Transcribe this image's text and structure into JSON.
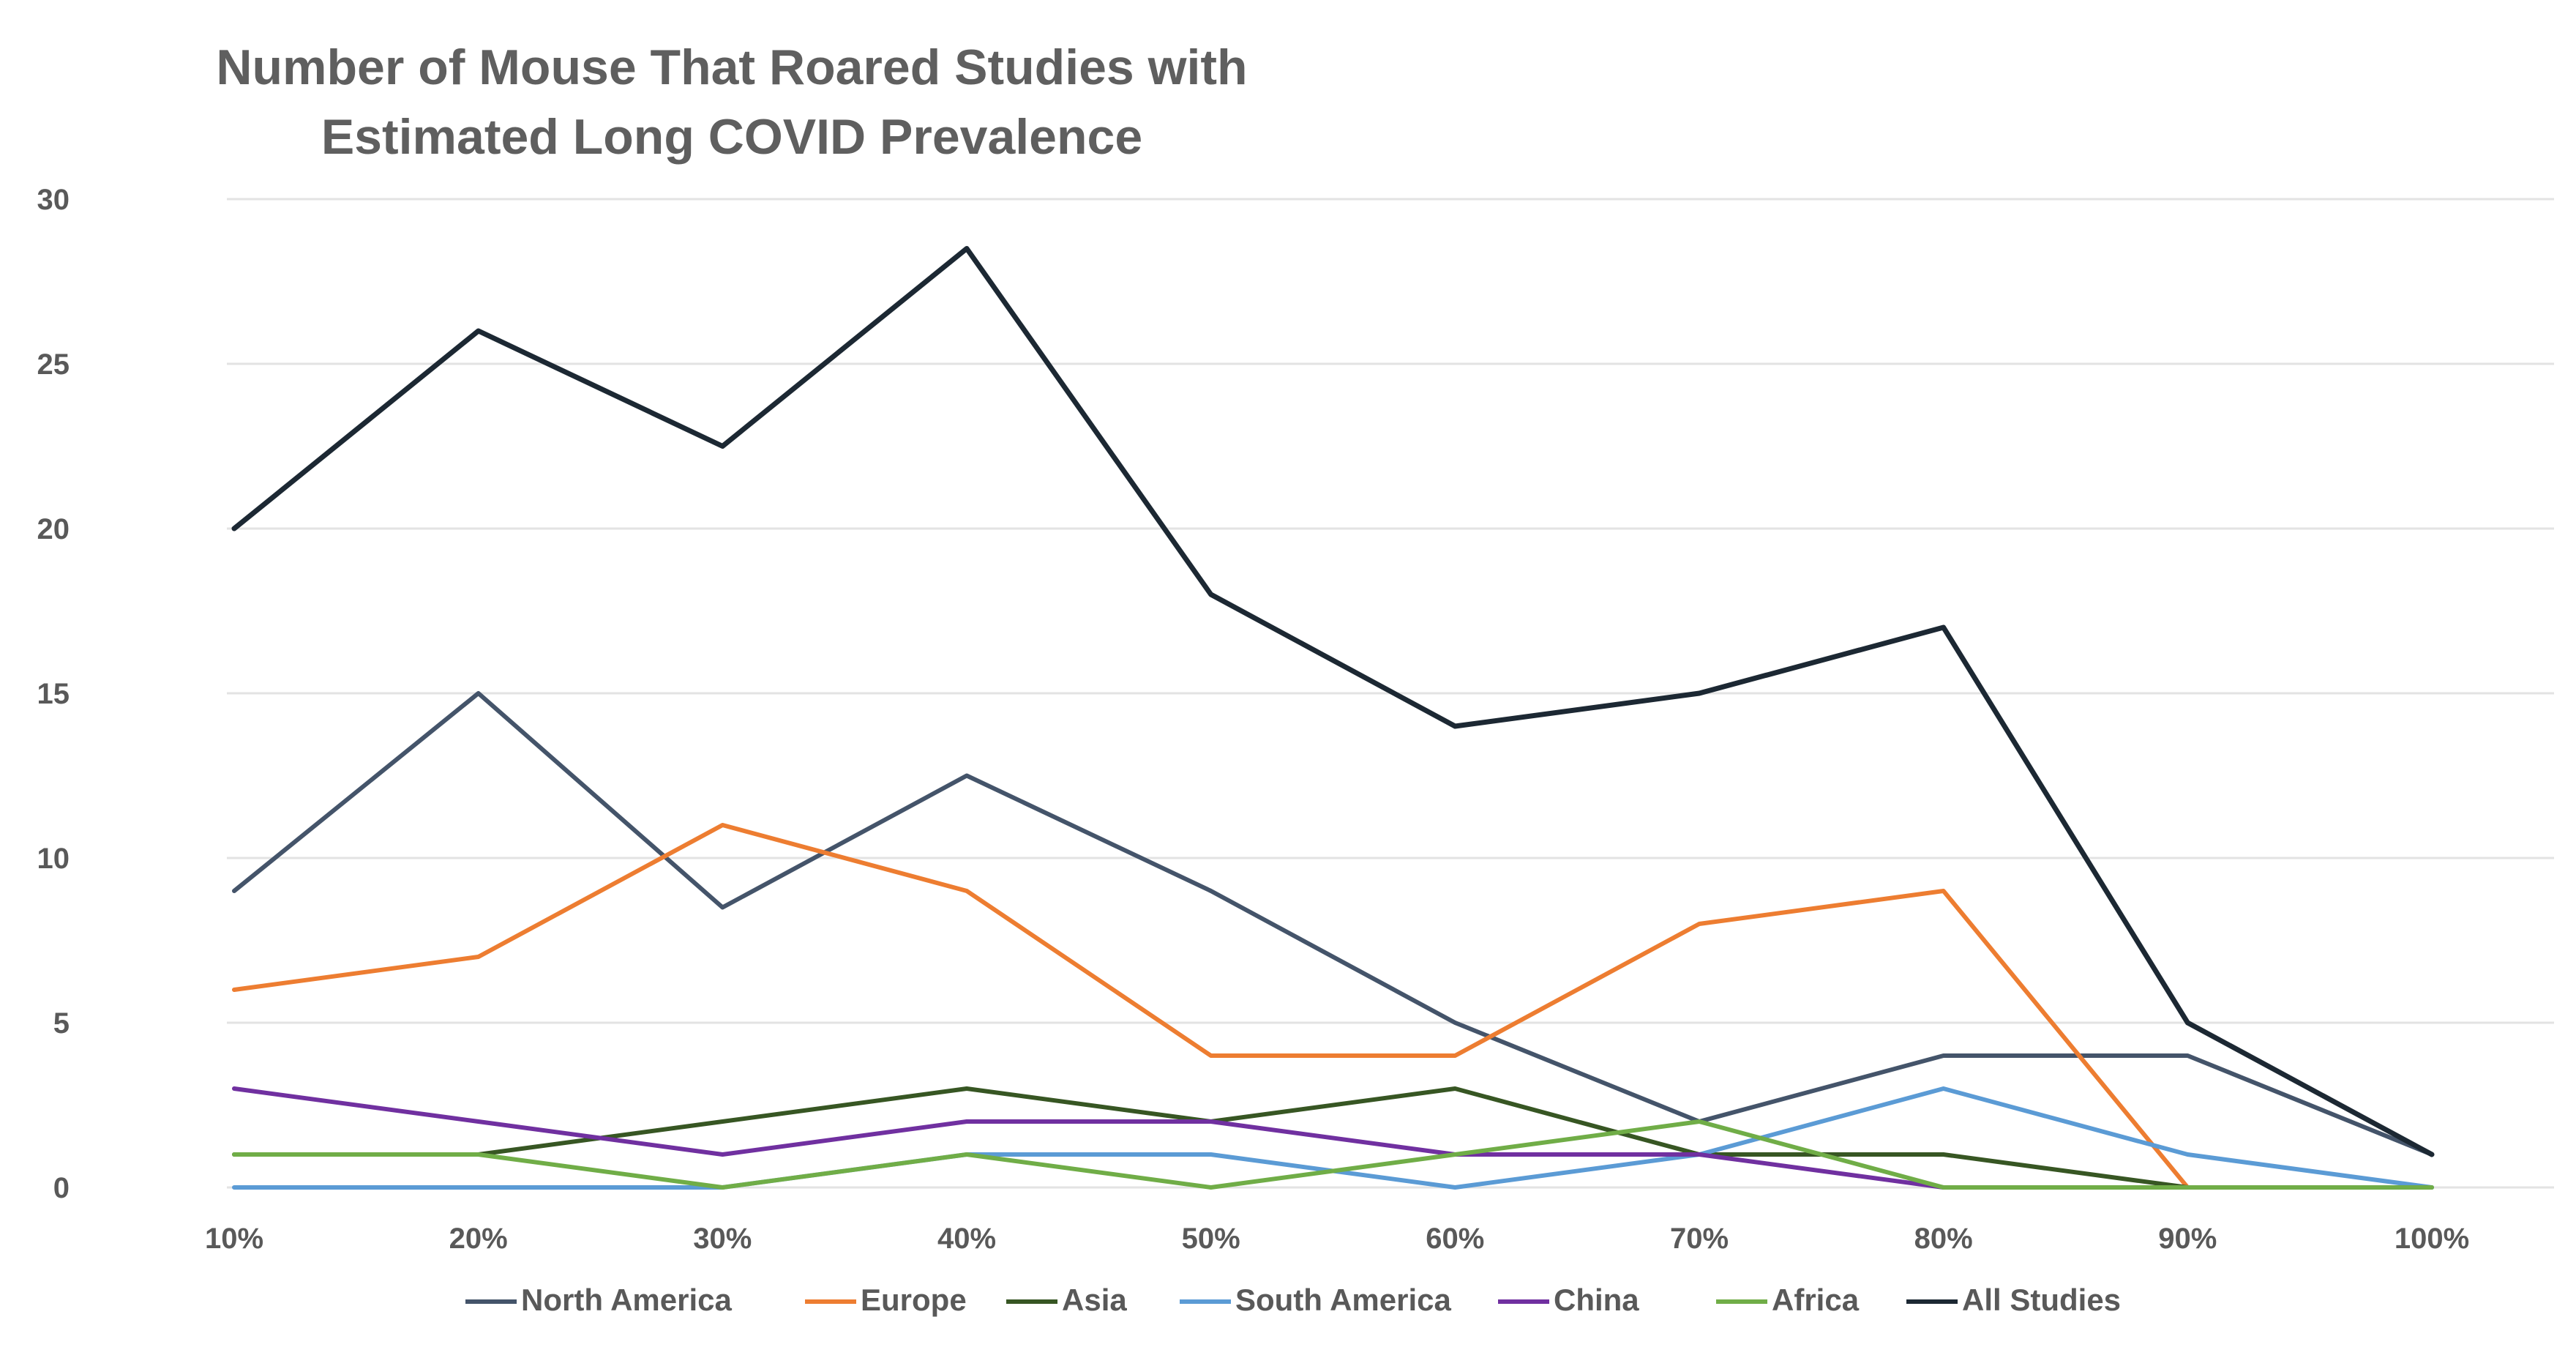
{
  "chart_data": {
    "type": "line",
    "title_lines": [
      "Number of Mouse That Roared Studies with",
      "Estimated Long COVID Prevalence"
    ],
    "xlabel": "",
    "ylabel": "",
    "categories": [
      "10%",
      "20%",
      "30%",
      "40%",
      "50%",
      "60%",
      "70%",
      "80%",
      "90%",
      "100%"
    ],
    "ylim": [
      0,
      30
    ],
    "yticks": [
      0,
      5,
      10,
      15,
      20,
      25,
      30
    ],
    "grid": "horizontal",
    "legend_position": "bottom",
    "series": [
      {
        "name": "North America",
        "color": "#44546a",
        "values": [
          9,
          15,
          8.5,
          12.5,
          9,
          5,
          2,
          4,
          4,
          1
        ]
      },
      {
        "name": "Europe",
        "color": "#ed7d31",
        "values": [
          6,
          7,
          11,
          9,
          4,
          4,
          8,
          9,
          0,
          null
        ]
      },
      {
        "name": "Asia",
        "color": "#375623",
        "values": [
          1,
          1,
          2,
          3,
          2,
          3,
          1,
          1,
          0,
          0
        ]
      },
      {
        "name": "South America",
        "color": "#5b9bd5",
        "values": [
          0,
          0,
          0,
          1,
          1,
          0,
          1,
          3,
          1,
          0
        ]
      },
      {
        "name": "China",
        "color": "#7030a0",
        "values": [
          3,
          2,
          1,
          2,
          2,
          1,
          1,
          0,
          null,
          null
        ]
      },
      {
        "name": "Africa",
        "color": "#70ad47",
        "values": [
          1,
          1,
          0,
          1,
          0,
          1,
          2,
          0,
          0,
          0
        ]
      },
      {
        "name": "All Studies",
        "color": "#1c2833",
        "values": [
          20,
          26,
          22.5,
          28.5,
          18,
          14,
          15,
          17,
          5,
          1
        ]
      }
    ]
  }
}
